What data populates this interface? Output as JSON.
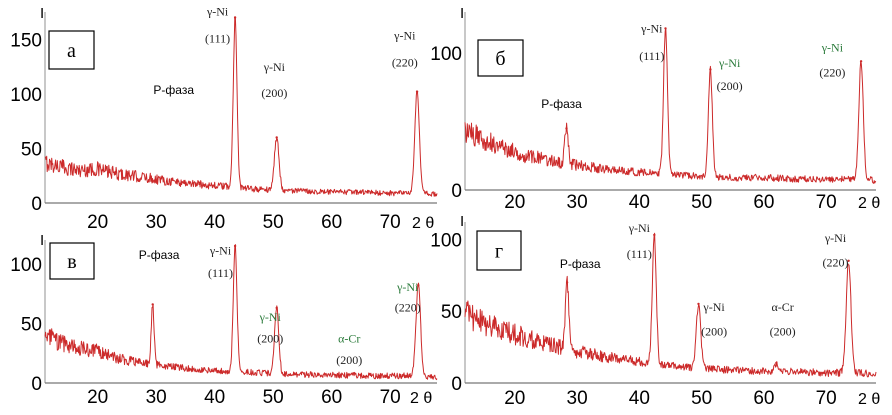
{
  "chart_data": [
    {
      "type": "line",
      "panel_label": "а",
      "y_axis_name": "I",
      "x_axis_name": "2 θ",
      "xlim": [
        11,
        78
      ],
      "ylim": [
        0,
        175
      ],
      "x_ticks": [
        "20",
        "30",
        "40",
        "50",
        "60",
        "70"
      ],
      "y_ticks": [
        "0",
        "50",
        "100",
        "150"
      ],
      "baseline": [
        [
          11,
          37
        ],
        [
          14,
          33
        ],
        [
          17,
          30
        ],
        [
          20,
          31
        ],
        [
          23,
          27
        ],
        [
          27,
          24
        ],
        [
          30,
          22
        ],
        [
          34,
          19
        ],
        [
          38,
          17
        ],
        [
          42,
          15
        ],
        [
          46,
          13
        ],
        [
          50,
          12
        ],
        [
          55,
          11
        ],
        [
          60,
          10
        ],
        [
          65,
          10
        ],
        [
          70,
          9
        ],
        [
          75,
          9
        ],
        [
          78,
          8
        ]
      ],
      "peaks": [
        {
          "x": 43.5,
          "y": 170,
          "width": 0.45
        },
        {
          "x": 50.6,
          "y": 60,
          "width": 0.55
        },
        {
          "x": 74.6,
          "y": 102,
          "width": 0.55
        }
      ],
      "color": "#cc2a2a",
      "annotations": [
        {
          "text": "Р-фаза",
          "x": 33,
          "y": 100,
          "style": "phase"
        },
        {
          "text": "γ-Ni",
          "x": 40.5,
          "y": 172,
          "style": "plain"
        },
        {
          "text": "(111)",
          "x": 40.5,
          "y": 147,
          "style": "plain"
        },
        {
          "text": "γ-Ni",
          "x": 50.2,
          "y": 121,
          "style": "plain"
        },
        {
          "text": "(200)",
          "x": 50.2,
          "y": 97,
          "style": "plain"
        },
        {
          "text": "γ-Ni",
          "x": 72.5,
          "y": 150,
          "style": "plain"
        },
        {
          "text": "(220)",
          "x": 72.5,
          "y": 125,
          "style": "plain"
        }
      ]
    },
    {
      "type": "line",
      "panel_label": "б",
      "y_axis_name": "I",
      "x_axis_name": "2 θ",
      "xlim": [
        12,
        78
      ],
      "ylim": [
        0,
        130
      ],
      "x_ticks": [
        "20",
        "30",
        "40",
        "50",
        "60",
        "70"
      ],
      "y_ticks": [
        "0",
        "100"
      ],
      "baseline": [
        [
          12,
          42
        ],
        [
          15,
          37
        ],
        [
          18,
          31
        ],
        [
          22,
          25
        ],
        [
          26,
          21
        ],
        [
          30,
          18
        ],
        [
          35,
          15
        ],
        [
          40,
          13
        ],
        [
          45,
          11
        ],
        [
          50,
          10
        ],
        [
          55,
          9
        ],
        [
          60,
          9
        ],
        [
          65,
          8
        ],
        [
          70,
          8
        ],
        [
          75,
          8
        ],
        [
          78,
          7
        ]
      ],
      "peaks": [
        {
          "x": 28.3,
          "y": 45,
          "width": 0.4
        },
        {
          "x": 44.2,
          "y": 118,
          "width": 0.45
        },
        {
          "x": 51.4,
          "y": 88,
          "width": 0.45
        },
        {
          "x": 75.6,
          "y": 94,
          "width": 0.5
        }
      ],
      "color": "#cc2a2a",
      "annotations": [
        {
          "text": "Р-фаза",
          "x": 27.5,
          "y": 60,
          "style": "phase"
        },
        {
          "text": "γ-Ni",
          "x": 42,
          "y": 115,
          "style": "plain"
        },
        {
          "text": "(111)",
          "x": 42,
          "y": 95,
          "style": "plain"
        },
        {
          "text": "γ-Ni",
          "x": 54.5,
          "y": 90,
          "style": "green"
        },
        {
          "text": "(200)",
          "x": 54.5,
          "y": 73,
          "style": "plain"
        },
        {
          "text": "γ-Ni",
          "x": 71,
          "y": 101,
          "style": "green"
        },
        {
          "text": "(220)",
          "x": 71,
          "y": 83,
          "style": "plain"
        }
      ]
    },
    {
      "type": "line",
      "panel_label": "в",
      "y_axis_name": "I",
      "x_axis_name": "2 θ",
      "xlim": [
        11,
        78
      ],
      "ylim": [
        0,
        120
      ],
      "x_ticks": [
        "20",
        "30",
        "40",
        "50",
        "60",
        "70"
      ],
      "y_ticks": [
        "0",
        "50",
        "100"
      ],
      "baseline": [
        [
          11,
          40
        ],
        [
          14,
          33
        ],
        [
          17,
          29
        ],
        [
          20,
          27
        ],
        [
          23,
          21
        ],
        [
          27,
          17
        ],
        [
          30,
          15
        ],
        [
          34,
          13
        ],
        [
          38,
          11
        ],
        [
          42,
          10
        ],
        [
          46,
          9
        ],
        [
          50,
          8
        ],
        [
          55,
          7
        ],
        [
          60,
          7
        ],
        [
          65,
          6
        ],
        [
          70,
          6
        ],
        [
          75,
          6
        ],
        [
          78,
          5
        ]
      ],
      "peaks": [
        {
          "x": 29.4,
          "y": 66,
          "width": 0.35
        },
        {
          "x": 43.5,
          "y": 115,
          "width": 0.45
        },
        {
          "x": 50.6,
          "y": 63,
          "width": 0.5
        },
        {
          "x": 63.8,
          "y": 8,
          "width": 0.45
        },
        {
          "x": 74.8,
          "y": 82,
          "width": 0.55
        }
      ],
      "color": "#cc2a2a",
      "annotations": [
        {
          "text": "Р-фаза",
          "x": 30.5,
          "y": 104,
          "style": "phase"
        },
        {
          "text": "γ-Ni",
          "x": 41,
          "y": 108,
          "style": "plain"
        },
        {
          "text": "(111)",
          "x": 41,
          "y": 89,
          "style": "plain"
        },
        {
          "text": "γ-Ni",
          "x": 49.5,
          "y": 52,
          "style": "green"
        },
        {
          "text": "(200)",
          "x": 49.5,
          "y": 34,
          "style": "plain"
        },
        {
          "text": "α-Cr",
          "x": 63,
          "y": 34,
          "style": "green"
        },
        {
          "text": "(200)",
          "x": 63,
          "y": 16,
          "style": "plain"
        },
        {
          "text": "γ-Ni",
          "x": 73,
          "y": 77,
          "style": "green"
        },
        {
          "text": "(220)",
          "x": 73,
          "y": 60,
          "style": "plain"
        }
      ]
    },
    {
      "type": "line",
      "panel_label": "г",
      "y_axis_name": "I",
      "x_axis_name": "2 θ",
      "xlim": [
        12,
        78
      ],
      "ylim": [
        0,
        112
      ],
      "x_ticks": [
        "20",
        "30",
        "40",
        "50",
        "60",
        "70"
      ],
      "y_ticks": [
        "0",
        "50",
        "100"
      ],
      "baseline": [
        [
          12,
          48
        ],
        [
          15,
          42
        ],
        [
          18,
          37
        ],
        [
          22,
          31
        ],
        [
          26,
          26
        ],
        [
          30,
          22
        ],
        [
          35,
          18
        ],
        [
          40,
          15
        ],
        [
          45,
          12
        ],
        [
          50,
          10
        ],
        [
          55,
          9
        ],
        [
          60,
          8
        ],
        [
          65,
          8
        ],
        [
          70,
          7
        ],
        [
          75,
          7
        ],
        [
          78,
          6
        ]
      ],
      "peaks": [
        {
          "x": 28.4,
          "y": 70,
          "width": 0.4
        },
        {
          "x": 42.4,
          "y": 103,
          "width": 0.45
        },
        {
          "x": 49.5,
          "y": 55,
          "width": 0.5
        },
        {
          "x": 62.0,
          "y": 14,
          "width": 0.45
        },
        {
          "x": 73.6,
          "y": 85,
          "width": 0.55
        }
      ],
      "color": "#cc2a2a",
      "annotations": [
        {
          "text": "Р-фаза",
          "x": 30.5,
          "y": 80,
          "style": "phase"
        },
        {
          "text": "γ-Ni",
          "x": 40,
          "y": 105,
          "style": "plain"
        },
        {
          "text": "(111)",
          "x": 40,
          "y": 87,
          "style": "plain"
        },
        {
          "text": "γ-Ni",
          "x": 52,
          "y": 50,
          "style": "plain"
        },
        {
          "text": "(200)",
          "x": 52,
          "y": 33,
          "style": "plain"
        },
        {
          "text": "α-Cr",
          "x": 63,
          "y": 50,
          "style": "plain"
        },
        {
          "text": "(200)",
          "x": 63,
          "y": 33,
          "style": "plain"
        },
        {
          "text": "γ-Ni",
          "x": 71.5,
          "y": 98,
          "style": "plain"
        },
        {
          "text": "(220)",
          "x": 71.5,
          "y": 81,
          "style": "plain"
        }
      ]
    }
  ]
}
